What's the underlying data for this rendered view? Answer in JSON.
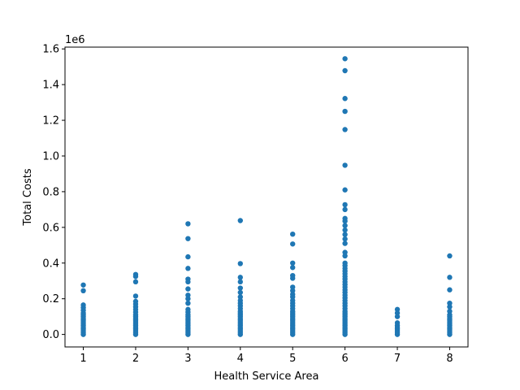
{
  "chart_data": {
    "type": "scatter",
    "title": "",
    "xlabel": "Health Service Area",
    "ylabel": "Total Costs",
    "y_offset_label": "1e6",
    "xlim": [
      0.65,
      8.35
    ],
    "ylim": [
      -0.07,
      1.61
    ],
    "x_ticks": [
      1,
      2,
      3,
      4,
      5,
      6,
      7,
      8
    ],
    "x_tick_labels": [
      "1",
      "2",
      "3",
      "4",
      "5",
      "6",
      "7",
      "8"
    ],
    "y_ticks": [
      0.0,
      0.2,
      0.4,
      0.6,
      0.8,
      1.0,
      1.2,
      1.4,
      1.6
    ],
    "y_tick_labels": [
      "0.0",
      "0.2",
      "0.4",
      "0.6",
      "0.8",
      "1.0",
      "1.2",
      "1.4",
      "1.6"
    ],
    "y_unit_scale": "x1e6",
    "grid": false,
    "marker_color": "#1f77b4",
    "series": [
      {
        "groups": [
          {
            "x": 1,
            "values": [
              0.277,
              0.245,
              0.165,
              0.15,
              0.135,
              0.12,
              0.11,
              0.1,
              0.09,
              0.08,
              0.07,
              0.06,
              0.05,
              0.04,
              0.03,
              0.02,
              0.01,
              0.0
            ]
          },
          {
            "x": 2,
            "values": [
              0.336,
              0.325,
              0.295,
              0.215,
              0.185,
              0.17,
              0.155,
              0.14,
              0.125,
              0.11,
              0.1,
              0.09,
              0.08,
              0.07,
              0.06,
              0.05,
              0.04,
              0.03,
              0.02,
              0.01,
              0.0
            ]
          },
          {
            "x": 3,
            "values": [
              0.62,
              0.537,
              0.435,
              0.37,
              0.31,
              0.295,
              0.255,
              0.22,
              0.2,
              0.175,
              0.14,
              0.125,
              0.11,
              0.1,
              0.09,
              0.08,
              0.07,
              0.06,
              0.05,
              0.04,
              0.03,
              0.02,
              0.01,
              0.0
            ]
          },
          {
            "x": 4,
            "values": [
              0.638,
              0.397,
              0.32,
              0.295,
              0.26,
              0.235,
              0.21,
              0.19,
              0.175,
              0.16,
              0.145,
              0.13,
              0.12,
              0.11,
              0.1,
              0.09,
              0.08,
              0.07,
              0.06,
              0.05,
              0.04,
              0.03,
              0.02,
              0.01,
              0.0
            ]
          },
          {
            "x": 5,
            "values": [
              0.562,
              0.507,
              0.4,
              0.375,
              0.33,
              0.315,
              0.265,
              0.245,
              0.225,
              0.21,
              0.19,
              0.175,
              0.16,
              0.145,
              0.13,
              0.12,
              0.11,
              0.1,
              0.09,
              0.08,
              0.07,
              0.06,
              0.05,
              0.04,
              0.03,
              0.02,
              0.01,
              0.0
            ]
          },
          {
            "x": 6,
            "values": [
              1.545,
              1.478,
              1.322,
              1.25,
              1.148,
              0.948,
              0.81,
              0.727,
              0.7,
              0.65,
              0.635,
              0.61,
              0.585,
              0.56,
              0.535,
              0.51,
              0.46,
              0.44,
              0.4,
              0.385,
              0.37,
              0.355,
              0.34,
              0.325,
              0.31,
              0.295,
              0.28,
              0.265,
              0.25,
              0.235,
              0.22,
              0.205,
              0.19,
              0.175,
              0.16,
              0.145,
              0.13,
              0.12,
              0.11,
              0.1,
              0.09,
              0.08,
              0.07,
              0.06,
              0.05,
              0.04,
              0.03,
              0.02,
              0.01,
              0.0
            ]
          },
          {
            "x": 7,
            "values": [
              0.14,
              0.12,
              0.1,
              0.065,
              0.05,
              0.04,
              0.03,
              0.02,
              0.01,
              0.0
            ]
          },
          {
            "x": 8,
            "values": [
              0.44,
              0.32,
              0.25,
              0.175,
              0.155,
              0.13,
              0.11,
              0.1,
              0.09,
              0.08,
              0.07,
              0.06,
              0.05,
              0.04,
              0.03,
              0.02,
              0.01,
              0.0
            ]
          }
        ]
      }
    ]
  }
}
